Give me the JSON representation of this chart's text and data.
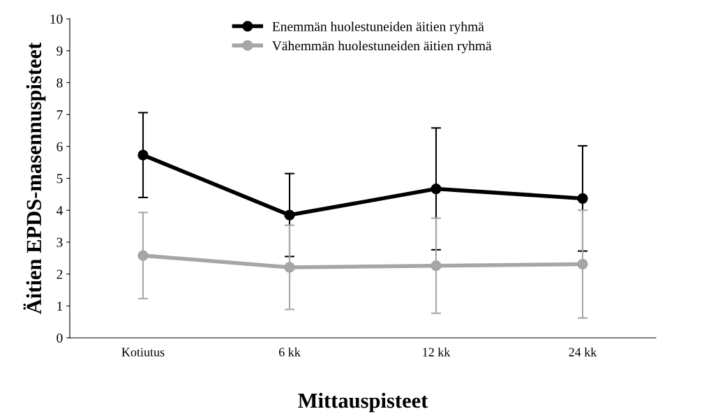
{
  "chart_data": {
    "type": "line",
    "xlabel": "Mittauspisteet",
    "ylabel": "Äitien EPDS-masennuspisteet",
    "categories": [
      "Kotiutus",
      "6 kk",
      "12 kk",
      "24 kk"
    ],
    "series": [
      {
        "name": "Enemmän huolestuneiden äitien ryhmä",
        "color": "#000000",
        "values": [
          5.73,
          3.85,
          4.67,
          4.37
        ],
        "errors": [
          1.33,
          1.3,
          1.91,
          1.65
        ]
      },
      {
        "name": "Vähemmän huolestuneiden äitien ryhmä",
        "color": "#a6a6a6",
        "values": [
          2.58,
          2.21,
          2.26,
          2.31
        ],
        "errors": [
          1.35,
          1.32,
          1.49,
          1.69
        ]
      }
    ],
    "ylim": [
      0,
      10
    ],
    "yticks": [
      0,
      1,
      2,
      3,
      4,
      5,
      6,
      7,
      8,
      9,
      10
    ],
    "grid": false,
    "legend": "top",
    "marker": "circle",
    "line_style": "solid"
  }
}
